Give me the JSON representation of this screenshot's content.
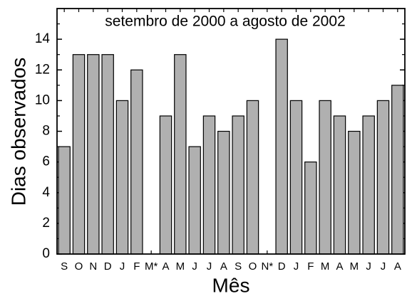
{
  "chart_data": {
    "type": "bar",
    "title": "setembro de 2000 a agosto de 2002",
    "x_label": "Mês",
    "y_label": "Dias observados",
    "categories": [
      "S",
      "O",
      "N",
      "D",
      "J",
      "F",
      "M*",
      "A",
      "M",
      "J",
      "J",
      "A",
      "S",
      "O",
      "N*",
      "D",
      "J",
      "F",
      "M",
      "A",
      "M",
      "J",
      "J",
      "A"
    ],
    "values": [
      7,
      13,
      13,
      13,
      10,
      12,
      null,
      9,
      13,
      7,
      9,
      8,
      9,
      10,
      null,
      14,
      10,
      6,
      10,
      9,
      8,
      9,
      10,
      11
    ],
    "color": "#b0b0b0",
    "ylim": [
      0,
      16
    ],
    "yticks": [
      0,
      2,
      4,
      6,
      8,
      10,
      12,
      14
    ],
    "grid": false
  }
}
